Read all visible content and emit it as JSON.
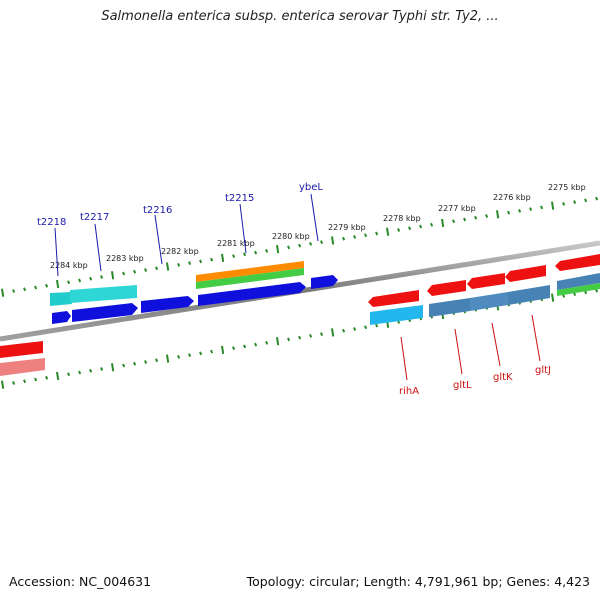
{
  "title": "Salmonella enterica subsp. enterica serovar Typhi str. Ty2, ...",
  "footer": {
    "accession": "Accession: NC_004631",
    "topology": "Topology: circular; Length: 4,791,961 bp; Genes: 4,423"
  },
  "colors": {
    "backbone": "#808080",
    "tick": "#2a8a2a",
    "upper_label": "#1a1aa8",
    "lower_label": "#cc1111",
    "blue": "#1010dd",
    "cyan": "#22cccc",
    "sky": "#22b8ee",
    "steel": "#4682b4",
    "red": "#ee1111",
    "pink": "#ee8080",
    "orange": "#ff8c00",
    "green": "#44cc44"
  },
  "scale_labels": [
    "2284 kbp",
    "2283 kbp",
    "2282 kbp",
    "2281 kbp",
    "2280 kbp",
    "2279 kbp",
    "2278 kbp",
    "2277 kbp",
    "2276 kbp",
    "2275 kbp"
  ],
  "upper_gene_labels": [
    "t2218",
    "t2217",
    "t2216",
    "t2215",
    "ybeL"
  ],
  "lower_gene_labels": [
    "rihA",
    "gltL",
    "gltK",
    "gltJ"
  ]
}
